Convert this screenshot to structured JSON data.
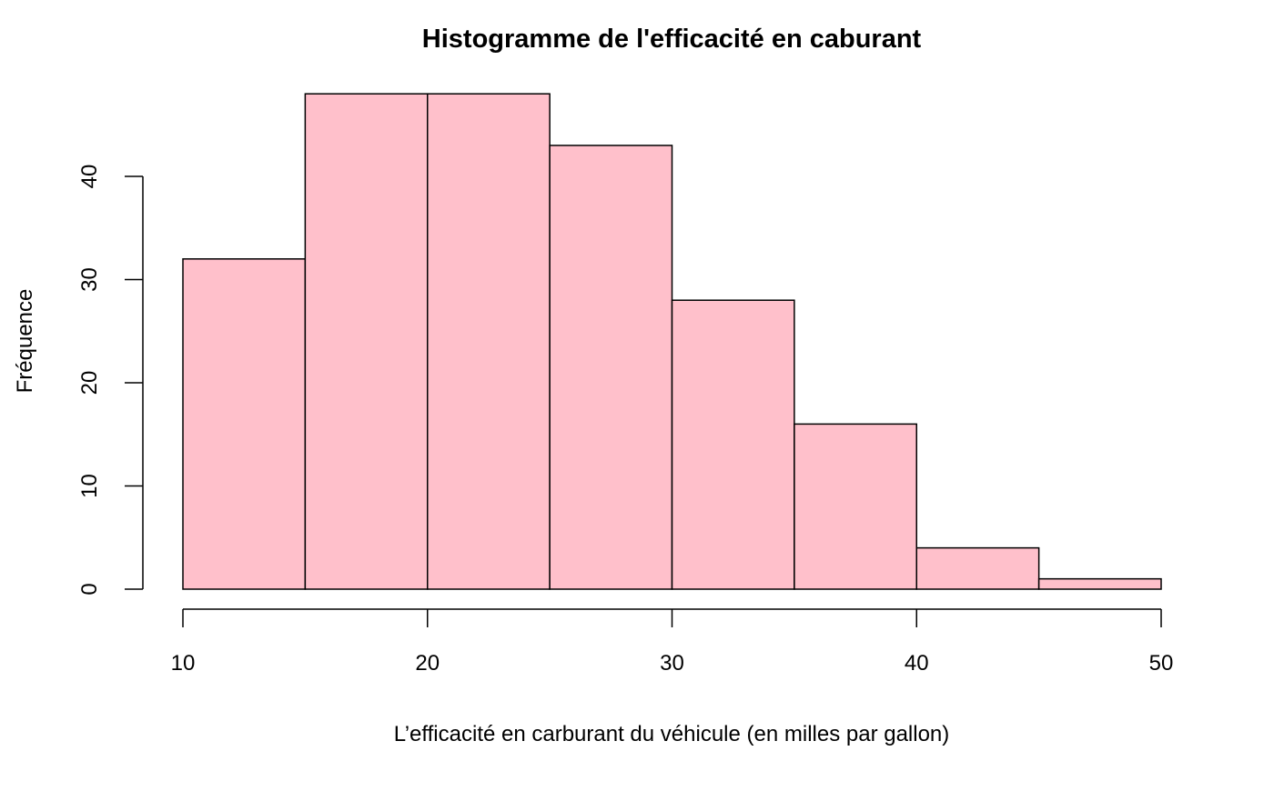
{
  "chart_data": {
    "type": "bar",
    "title": "Histogramme de l'efficacité en caburant",
    "xlabel": "L’efficacité en carburant du véhicule (en milles par gallon)",
    "ylabel": "Fréquence",
    "bins": [
      {
        "from": 10,
        "to": 15,
        "value": 32
      },
      {
        "from": 15,
        "to": 20,
        "value": 48
      },
      {
        "from": 20,
        "to": 25,
        "value": 48
      },
      {
        "from": 25,
        "to": 30,
        "value": 43
      },
      {
        "from": 30,
        "to": 35,
        "value": 28
      },
      {
        "from": 35,
        "to": 40,
        "value": 16
      },
      {
        "from": 40,
        "to": 45,
        "value": 4
      },
      {
        "from": 45,
        "to": 50,
        "value": 1
      }
    ],
    "xlim": [
      10,
      50
    ],
    "ylim": [
      0,
      48
    ],
    "x_ticks": [
      "10",
      "20",
      "30",
      "40",
      "50"
    ],
    "y_ticks": [
      "0",
      "10",
      "20",
      "30",
      "40"
    ],
    "grid": false,
    "bar_fill_color": "#ffc0cb",
    "bar_edge_color": "#000000"
  }
}
